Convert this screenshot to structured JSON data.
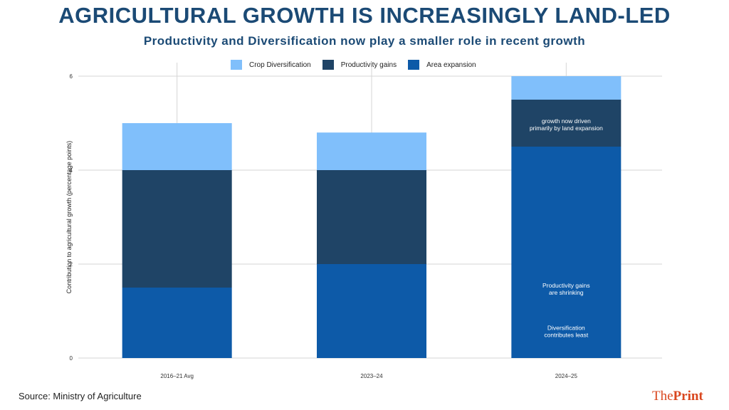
{
  "chart_data": {
    "type": "bar",
    "stacked": true,
    "title": "AGRICULTURAL GROWTH IS INCREASINGLY LAND-LED",
    "subtitle": "Productivity and Diversification now play a smaller role in recent growth",
    "ylabel": "Contribution to agricultural growth (percentage points)",
    "xlabel": "",
    "ylim": [
      0,
      6
    ],
    "yticks": [
      "0",
      "2",
      "4",
      "6"
    ],
    "grid": true,
    "legend_position": "top",
    "categories": [
      "2016–21 Avg",
      "2023–24",
      "2024–25"
    ],
    "series": [
      {
        "name": "Area expansion",
        "color": "#0d5aa8",
        "values": [
          1.5,
          2.0,
          4.5
        ]
      },
      {
        "name": "Productivity gains",
        "color": "#1f4466",
        "values": [
          2.5,
          2.0,
          1.0
        ]
      },
      {
        "name": "Crop Diversification",
        "color": "#80bffb",
        "values": [
          1.0,
          0.8,
          0.5
        ]
      }
    ],
    "legend_order": [
      "Crop Diversification",
      "Productivity gains",
      "Area expansion"
    ],
    "annotations": [
      {
        "category": "2024–25",
        "y": 5.0,
        "lines": [
          "growth now driven",
          "primarily by land expansion"
        ]
      },
      {
        "category": "2024–25",
        "y": 1.5,
        "lines": [
          "Productivity gains",
          "are shrinking"
        ]
      },
      {
        "category": "2024–25",
        "y": 0.6,
        "lines": [
          "Diversification",
          "contributes least"
        ]
      }
    ]
  },
  "source": "Source: Ministry of Agriculture",
  "logo": {
    "part1": "The",
    "part2": "Print",
    "color": "#d9461e"
  }
}
